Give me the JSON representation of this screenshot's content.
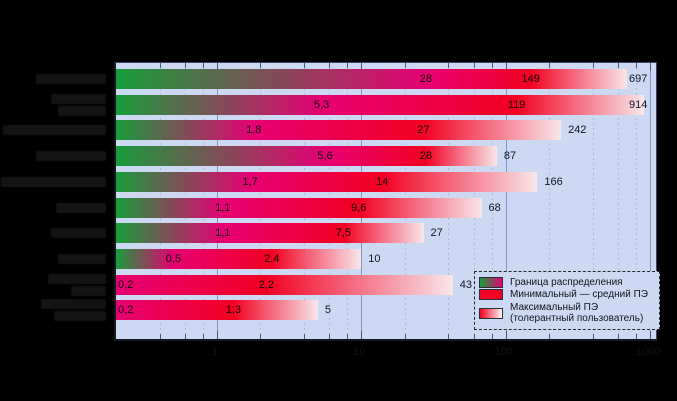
{
  "note": "Static chart image on black background. Chart title, x-axis title and the 10 category labels are rendered as black text on a black background and are illegible in the screenshot; they are reproduced as dark smudge blocks, not text.",
  "chart_data": {
    "type": "bar",
    "orientation": "horizontal",
    "title": "",
    "x_axis": {
      "scale": "log",
      "min": 0.2,
      "max": 1100,
      "major_ticks": [
        1,
        10,
        100,
        1000
      ],
      "tick_labels": [
        "1",
        "10",
        "100",
        "1000"
      ],
      "minor_ticks": [
        0.4,
        0.6,
        0.8,
        2,
        4,
        6,
        8,
        20,
        40,
        60,
        80,
        200,
        400,
        600,
        800
      ],
      "grid": "major solid, minor dotted"
    },
    "series_meaning": [
      "segment from axis start to first value = Граница распределения (green→magenta gradient)",
      "segment from first to second value = Минимальный — средний ПЭ (solid red)",
      "segment from second to third value = Максимальный ПЭ, толерантный пользователь (red→white fade)"
    ],
    "categories_note": "category labels illegible (black-on-black)",
    "rows": [
      {
        "values": [
          28,
          149,
          697
        ],
        "labels": [
          "28",
          "149",
          "697"
        ],
        "smudge": [
          70
        ]
      },
      {
        "values": [
          5.3,
          119,
          914
        ],
        "labels": [
          "5,3",
          "119",
          "914"
        ],
        "smudge": [
          55,
          48
        ]
      },
      {
        "values": [
          1.8,
          27,
          242
        ],
        "labels": [
          "1,8",
          "27",
          "242"
        ],
        "smudge": [
          103
        ]
      },
      {
        "values": [
          5.6,
          28,
          87
        ],
        "labels": [
          "5,6",
          "28",
          "87"
        ],
        "smudge": [
          70
        ]
      },
      {
        "values": [
          1.7,
          14,
          166
        ],
        "labels": [
          "1,7",
          "14",
          "166"
        ],
        "smudge": [
          105
        ]
      },
      {
        "values": [
          1.1,
          9.6,
          68
        ],
        "labels": [
          "1,1",
          "9,6",
          "68"
        ],
        "smudge": [
          50
        ]
      },
      {
        "values": [
          1.1,
          7.5,
          27
        ],
        "labels": [
          "1,1",
          "7,5",
          "27"
        ],
        "smudge": [
          55
        ]
      },
      {
        "values": [
          0.5,
          2.4,
          10
        ],
        "labels": [
          "0,5",
          "2,4",
          "10"
        ],
        "smudge": [
          48
        ]
      },
      {
        "values": [
          0.2,
          2.2,
          43
        ],
        "labels": [
          "0,2",
          "2,2",
          "43"
        ],
        "smudge": [
          58,
          35
        ]
      },
      {
        "values": [
          0.2,
          1.3,
          5
        ],
        "labels": [
          "0,2",
          "1,3",
          "5"
        ],
        "smudge": [
          65,
          52
        ]
      }
    ],
    "legend_position": "bottom-right inside plot"
  },
  "legend": {
    "items": [
      {
        "swatch": "green-magenta-gradient",
        "lines": [
          "Граница распределения"
        ]
      },
      {
        "swatch": "solid-red",
        "lines": [
          "Минимальный — средний ПЭ"
        ]
      },
      {
        "swatch": "red-white-gradient",
        "lines": [
          "Максимальный ПЭ",
          "(толерантный пользователь)"
        ]
      }
    ]
  },
  "colors": {
    "page_bg": "#000000",
    "plot_bg": "#cdd9f2",
    "bar_green": "#189c3a",
    "bar_magenta": "#e60074",
    "bar_red": "#f20122",
    "bar_fade_end": "#f8e6ea",
    "grid_major": "#8095c8",
    "grid_minor": "#aebbdf",
    "value_text": "#140607",
    "smudge": "#131313"
  }
}
